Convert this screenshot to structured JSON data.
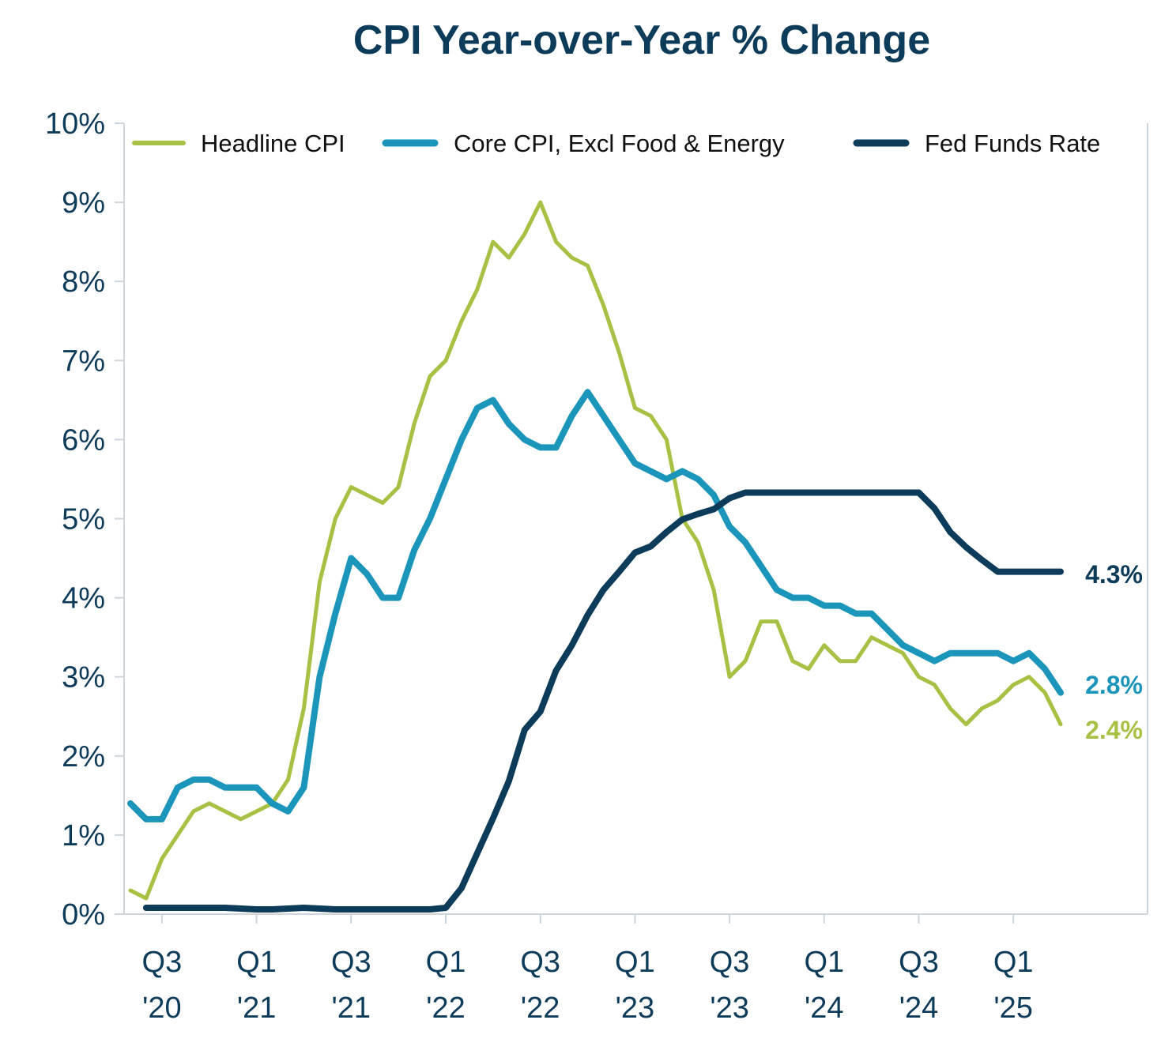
{
  "chart_data": {
    "type": "line",
    "title": "CPI Year-over-Year % Change",
    "xlabel": "",
    "ylabel": "",
    "ylim": [
      0,
      10
    ],
    "y_ticks": [
      "0%",
      "1%",
      "2%",
      "3%",
      "4%",
      "5%",
      "6%",
      "7%",
      "8%",
      "9%",
      "10%"
    ],
    "x_ticks": [
      {
        "index": 2,
        "line1": "Q3",
        "line2": "'20"
      },
      {
        "index": 8,
        "line1": "Q1",
        "line2": "'21"
      },
      {
        "index": 14,
        "line1": "Q3",
        "line2": "'21"
      },
      {
        "index": 20,
        "line1": "Q1",
        "line2": "'22"
      },
      {
        "index": 26,
        "line1": "Q3",
        "line2": "'22"
      },
      {
        "index": 32,
        "line1": "Q1",
        "line2": "'23"
      },
      {
        "index": 38,
        "line1": "Q3",
        "line2": "'23"
      },
      {
        "index": 44,
        "line1": "Q1",
        "line2": "'24"
      },
      {
        "index": 50,
        "line1": "Q3",
        "line2": "'24"
      },
      {
        "index": 56,
        "line1": "Q1",
        "line2": "'25"
      }
    ],
    "x_count": 65,
    "legend_position": "top",
    "grid": false,
    "series": [
      {
        "name": "Headline CPI",
        "color": "#a6c143",
        "end_label": "2.4%",
        "start_index": 0,
        "values": [
          0.3,
          0.2,
          0.7,
          1.0,
          1.3,
          1.4,
          1.3,
          1.2,
          1.3,
          1.4,
          1.7,
          2.6,
          4.2,
          5.0,
          5.4,
          5.3,
          5.2,
          5.4,
          6.2,
          6.8,
          7.0,
          7.5,
          7.9,
          8.5,
          8.3,
          8.6,
          9.0,
          8.5,
          8.3,
          8.2,
          7.7,
          7.1,
          6.4,
          6.3,
          6.0,
          5.0,
          4.7,
          4.1,
          3.0,
          3.2,
          3.7,
          3.7,
          3.2,
          3.1,
          3.4,
          3.2,
          3.2,
          3.5,
          3.4,
          3.3,
          3.0,
          2.9,
          2.6,
          2.4,
          2.6,
          2.7,
          2.9,
          3.0,
          2.8,
          2.4
        ]
      },
      {
        "name": "Core CPI, Excl Food & Energy",
        "color": "#1b96ba",
        "end_label": "2.8%",
        "start_index": 0,
        "values": [
          1.4,
          1.2,
          1.2,
          1.6,
          1.7,
          1.7,
          1.6,
          1.6,
          1.6,
          1.4,
          1.3,
          1.6,
          3.0,
          3.8,
          4.5,
          4.3,
          4.0,
          4.0,
          4.6,
          5.0,
          5.5,
          6.0,
          6.4,
          6.5,
          6.2,
          6.0,
          5.9,
          5.9,
          6.3,
          6.6,
          6.3,
          6.0,
          5.7,
          5.6,
          5.5,
          5.6,
          5.5,
          5.3,
          4.9,
          4.7,
          4.4,
          4.1,
          4.0,
          4.0,
          3.9,
          3.9,
          3.8,
          3.8,
          3.6,
          3.4,
          3.3,
          3.2,
          3.3,
          3.3,
          3.3,
          3.3,
          3.2,
          3.3,
          3.1,
          2.8
        ]
      },
      {
        "name": "Fed Funds Rate",
        "color": "#0d3b5a",
        "end_label": "4.3%",
        "start_index": 1,
        "values": [
          0.08,
          0.08,
          0.08,
          0.08,
          0.08,
          0.08,
          0.07,
          0.06,
          0.06,
          0.07,
          0.08,
          0.07,
          0.06,
          0.06,
          0.06,
          0.06,
          0.06,
          0.06,
          0.06,
          0.08,
          0.33,
          0.77,
          1.21,
          1.68,
          2.33,
          2.56,
          3.08,
          3.4,
          3.78,
          4.1,
          4.33,
          4.57,
          4.65,
          4.83,
          4.99,
          5.06,
          5.12,
          5.26,
          5.33,
          5.33,
          5.33,
          5.33,
          5.33,
          5.33,
          5.33,
          5.33,
          5.33,
          5.33,
          5.33,
          5.33,
          5.13,
          4.83,
          4.64,
          4.48,
          4.33,
          4.33,
          4.33,
          4.33,
          4.33
        ]
      }
    ]
  }
}
